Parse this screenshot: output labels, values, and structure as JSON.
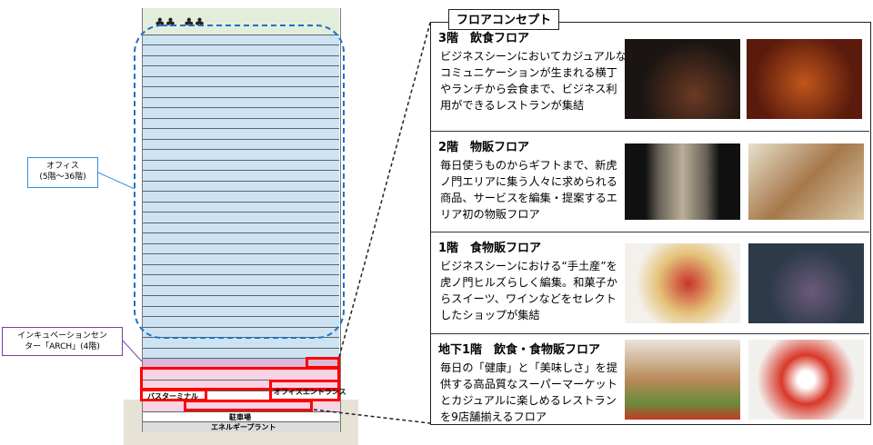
{
  "building": {
    "office_label": "オフィス",
    "office_floors": "(5階～36階)",
    "incubation_label_line1": "インキュベーションセン",
    "incubation_label_line2": "ター「ARCH」(4階)",
    "bus_terminal": "バスターミナル",
    "office_entrance": "オフィスエントランス",
    "parking": "駐車場",
    "energy_plant": "エネルギープラント"
  },
  "panel": {
    "title": "フロアコンセプト",
    "sections": [
      {
        "heading": "3階　飲食フロア",
        "text": "ビジネスシーンにおいてカジュアルなコミュニケーションが生まれる横丁やランチから会食まで、ビジネス利用ができるレストランが集結",
        "photos": [
          "teppanyaki-photo",
          "unagi-photo"
        ]
      },
      {
        "heading": "2階　物販フロア",
        "text": "毎日使うものからギフトまで、新虎ノ門エリアに集う人々に求められる商品、サービスを編集・提案するエリア初の物販フロア",
        "photos": [
          "store-entrance-photo",
          "bookstore-photo"
        ]
      },
      {
        "heading": "1階　食物販フロア",
        "text": "ビジネスシーンにおける“手土産”を虎ノ門ヒルズらしく編集。和菓子からスイーツ、ワインなどをセレクトしたショップが集結",
        "photos": [
          "sweets-photo",
          "roll-cake-photo"
        ]
      },
      {
        "heading": "地下1階　飲食・食物販フロア",
        "text": "毎日の「健康」と「美味しさ」を提供する高品質なスーパーマーケットとカジュアルに楽しめるレストランを9店舗揃えるフロア",
        "photos": [
          "supermarket-photo",
          "tomato-salad-photo"
        ]
      }
    ]
  },
  "colors": {
    "office": "#cde3f1",
    "retail": "#f8d3e4",
    "incubation": "#d9b8d8",
    "highlight": "#ff0000",
    "office_dash": "#1f6fc8",
    "roof": "#e2eedb"
  }
}
